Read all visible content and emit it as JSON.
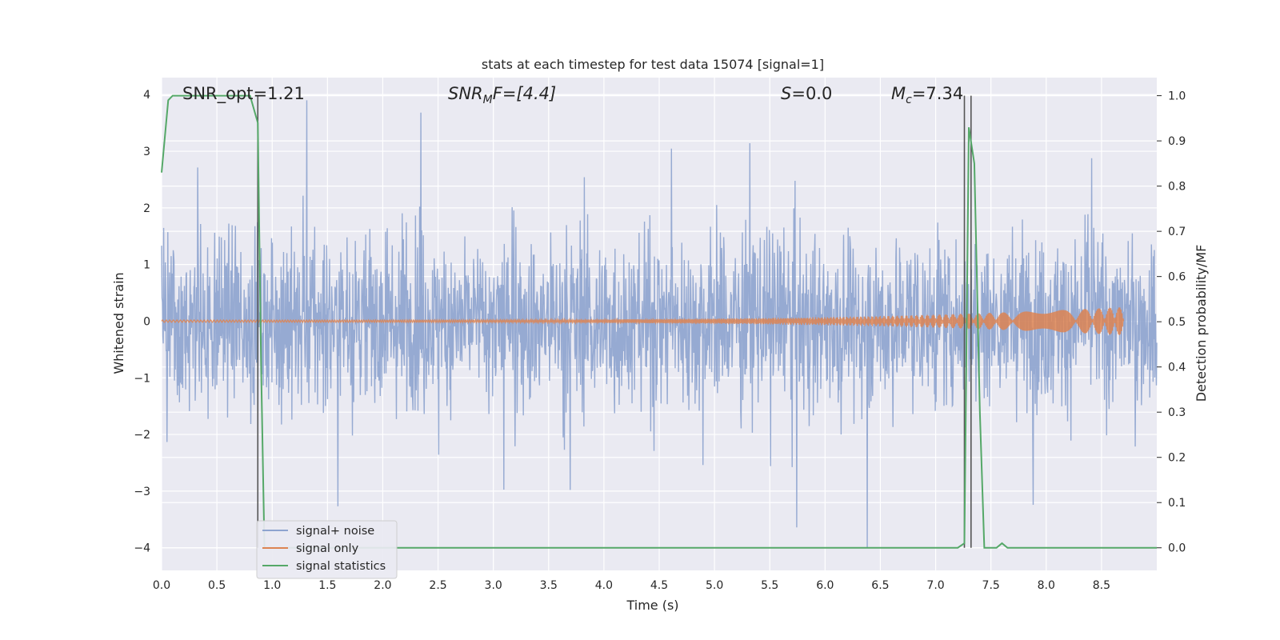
{
  "chart_data": {
    "type": "line",
    "title": "stats at each timestep for test data 15074 [signal=1]",
    "xlabel": "Time (s)",
    "ylabel": "Whitened strain",
    "ylabel_right": "Detection probability/MF",
    "xlim": [
      0,
      9.0
    ],
    "ylim": [
      -4.4,
      4.3
    ],
    "ylim_right": [
      -0.05,
      1.04
    ],
    "x_ticks": [
      "0.0",
      "0.5",
      "1.0",
      "1.5",
      "2.0",
      "2.5",
      "3.0",
      "3.5",
      "4.0",
      "4.5",
      "5.0",
      "5.5",
      "6.0",
      "6.5",
      "7.0",
      "7.5",
      "8.0",
      "8.5"
    ],
    "y_ticks": [
      "4",
      "3",
      "2",
      "1",
      "0",
      "−1",
      "−2",
      "−3",
      "−4"
    ],
    "y_ticks_right": [
      "1.0",
      "0.9",
      "0.8",
      "0.7",
      "0.6",
      "0.5",
      "0.4",
      "0.3",
      "0.2",
      "0.1",
      "0.0"
    ],
    "grid": true,
    "legend_position": "lower-left",
    "colors": {
      "noise": "#8ea4cf",
      "signal": "#dd8452",
      "stats": "#55a868",
      "markers": "#555555",
      "background": "#eaeaf2"
    },
    "annotations": {
      "snr_opt": "SNR_opt=1.21",
      "snr_mf_base": "SNR",
      "snr_mf_sub": "M",
      "snr_mf_rest": "F=[4.4]",
      "s_sym": "S",
      "s_val": "=0.0",
      "mc_sym": "M",
      "mc_sub": "c",
      "mc_val": "=7.34"
    },
    "series": [
      {
        "name": "signal+ noise",
        "description_range": [
          -4.0,
          3.9
        ]
      },
      {
        "name": "signal only",
        "amplitude_start": 0.02,
        "amplitude_end": 0.25,
        "end_x": 8.7
      },
      {
        "name": "signal statistics",
        "x": [
          0.0,
          0.06,
          0.1,
          0.2,
          0.3,
          0.4,
          0.5,
          0.6,
          0.7,
          0.8,
          0.87,
          0.9,
          0.93,
          1.0,
          1.5,
          2.0,
          3.0,
          4.0,
          5.0,
          6.0,
          7.0,
          7.2,
          7.26,
          7.3,
          7.35,
          7.4,
          7.44,
          7.5,
          7.55,
          7.6,
          7.65,
          7.7,
          7.75,
          8.0,
          8.5,
          9.0
        ],
        "y": [
          0.83,
          0.99,
          1.0,
          1.0,
          1.0,
          1.0,
          1.0,
          1.0,
          1.0,
          1.0,
          0.94,
          0.4,
          0.0,
          0.0,
          0.0,
          0.0,
          0.0,
          0.0,
          0.0,
          0.0,
          0.0,
          0.0,
          0.01,
          0.93,
          0.85,
          0.3,
          0.0,
          0.0,
          0.0,
          0.01,
          0.0,
          0.0,
          0.0,
          0.0,
          0.0,
          0.0
        ]
      }
    ],
    "vertical_markers": [
      0.87,
      7.26,
      7.32
    ]
  }
}
